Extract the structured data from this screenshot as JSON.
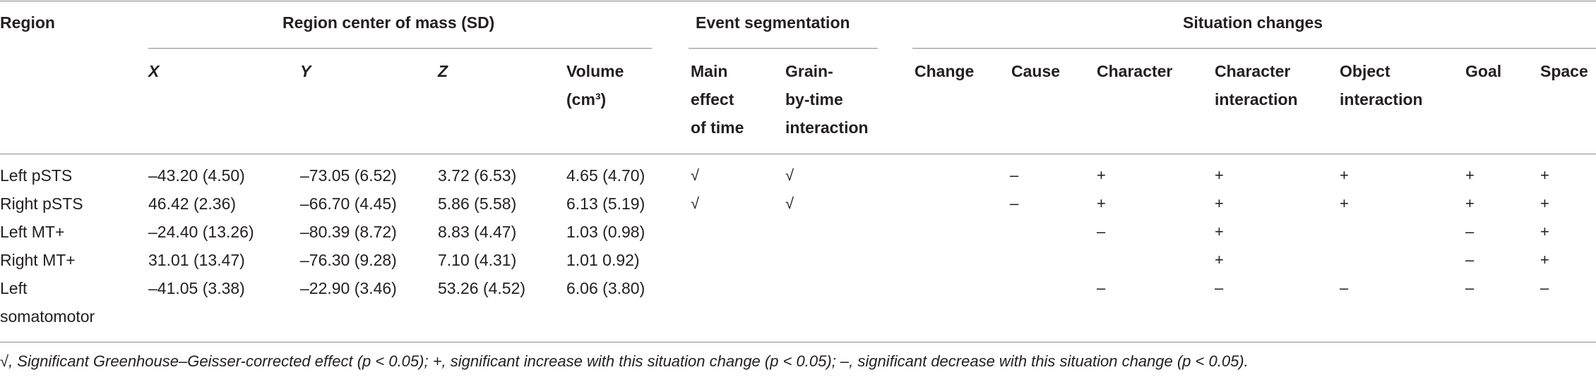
{
  "headers": {
    "region": "Region",
    "center_of_mass": "Region center of mass (SD)",
    "event_segmentation": "Event segmentation",
    "situation_changes": "Situation changes",
    "x": "X",
    "y": "Y",
    "z": "Z",
    "volume_line1": "Volume",
    "volume_line2": "(cm³)",
    "main_effect_line1": "Main",
    "main_effect_line2": "effect",
    "main_effect_line3": "of time",
    "grain_line1": "Grain-",
    "grain_line2": "by-time",
    "grain_line3": "interaction",
    "change": "Change",
    "cause": "Cause",
    "character": "Character",
    "char_interaction_line1": "Character",
    "char_interaction_line2": "interaction",
    "object_interaction_line1": "Object",
    "object_interaction_line2": "interaction",
    "goal": "Goal",
    "space": "Space"
  },
  "rows": [
    {
      "region": "Left pSTS",
      "x": "–43.20 (4.50)",
      "y": "–73.05 (6.52)",
      "z": "3.72 (6.53)",
      "volume": "4.65 (4.70)",
      "main_effect": "√",
      "grain": "√",
      "change": "",
      "cause": "–",
      "character": "+",
      "char_interaction": "+",
      "object_interaction": "+",
      "goal": "+",
      "space": "+"
    },
    {
      "region": "Right pSTS",
      "x": "46.42 (2.36)",
      "y": "–66.70 (4.45)",
      "z": "5.86 (5.58)",
      "volume": "6.13 (5.19)",
      "main_effect": "√",
      "grain": "√",
      "change": "",
      "cause": "–",
      "character": "+",
      "char_interaction": "+",
      "object_interaction": "+",
      "goal": "+",
      "space": "+"
    },
    {
      "region": "Left MT+",
      "x": "–24.40 (13.26)",
      "y": "–80.39 (8.72)",
      "z": "8.83 (4.47)",
      "volume": "1.03 (0.98)",
      "main_effect": "",
      "grain": "",
      "change": "",
      "cause": "",
      "character": "–",
      "char_interaction": "+",
      "object_interaction": "",
      "goal": "–",
      "space": "+"
    },
    {
      "region": "Right MT+",
      "x": "31.01 (13.47)",
      "y": "–76.30 (9.28)",
      "z": "7.10 (4.31)",
      "volume": "1.01 0.92)",
      "main_effect": "",
      "grain": "",
      "change": "",
      "cause": "",
      "character": "",
      "char_interaction": "+",
      "object_interaction": "",
      "goal": "–",
      "space": "+"
    },
    {
      "region_line1": "Left",
      "region_line2": "somatomotor",
      "x": "–41.05 (3.38)",
      "y": "–22.90 (3.46)",
      "z": "53.26 (4.52)",
      "volume": "6.06 (3.80)",
      "main_effect": "",
      "grain": "",
      "change": "",
      "cause": "",
      "character": "–",
      "char_interaction": "–",
      "object_interaction": "–",
      "goal": "–",
      "space": "–"
    }
  ],
  "footnote": "√, Significant Greenhouse–Geisser-corrected effect (p < 0.05); +, significant increase with this situation change (p < 0.05); –, significant decrease with this situation change (p < 0.05)."
}
